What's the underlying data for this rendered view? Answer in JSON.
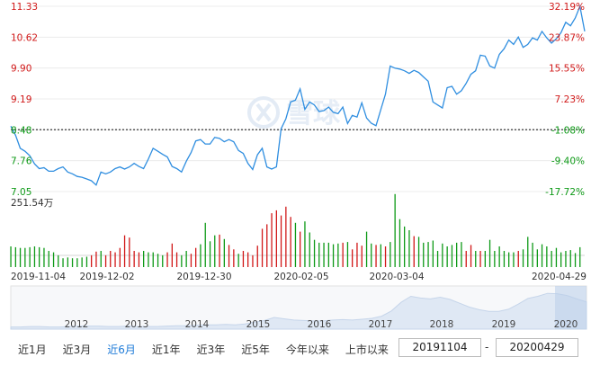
{
  "chart_data": {
    "type": "line",
    "x_labels": [
      "2019-11-04",
      "2019-12-02",
      "2019-12-30",
      "2020-02-05",
      "2020-03-04",
      "2020-04-29"
    ],
    "price_ticks": [
      "11.33",
      "10.62",
      "9.90",
      "9.19",
      "8.48",
      "7.76",
      "7.05"
    ],
    "percent_ticks": [
      "32.19%",
      "23.87%",
      "15.55%",
      "7.23%",
      "-1.08%",
      "-9.40%",
      "-17.72%"
    ],
    "baseline_price": 8.48,
    "ylim": [
      7.05,
      11.33
    ],
    "grid": true,
    "series": [
      {
        "values": [
          8.56,
          8.35,
          8.05,
          7.98,
          7.88,
          7.69,
          7.58,
          7.6,
          7.52,
          7.52,
          7.58,
          7.62,
          7.5,
          7.46,
          7.4,
          7.38,
          7.34,
          7.3,
          7.2,
          7.5,
          7.46,
          7.5,
          7.58,
          7.62,
          7.57,
          7.62,
          7.7,
          7.63,
          7.58,
          7.8,
          8.05,
          7.98,
          7.91,
          7.85,
          7.63,
          7.58,
          7.5,
          7.75,
          7.95,
          8.22,
          8.25,
          8.15,
          8.15,
          8.3,
          8.28,
          8.2,
          8.25,
          8.2,
          8.0,
          7.93,
          7.7,
          7.56,
          7.9,
          8.05,
          7.62,
          7.57,
          7.62,
          8.5,
          8.73,
          9.12,
          9.16,
          9.42,
          8.95,
          9.12,
          9.05,
          8.9,
          8.92,
          9.0,
          8.88,
          8.85,
          9.0,
          8.62,
          8.81,
          8.77,
          9.1,
          8.75,
          8.63,
          8.57,
          8.94,
          9.3,
          9.95,
          9.9,
          9.88,
          9.84,
          9.78,
          9.85,
          9.8,
          9.7,
          9.6,
          9.12,
          9.05,
          8.98,
          9.45,
          9.48,
          9.3,
          9.38,
          9.55,
          9.76,
          9.84,
          10.2,
          10.18,
          9.95,
          9.9,
          10.22,
          10.35,
          10.55,
          10.45,
          10.62,
          10.38,
          10.45,
          10.6,
          10.55,
          10.75,
          10.6,
          10.48,
          10.58,
          10.72,
          10.96,
          10.88,
          11.06,
          11.33,
          10.75
        ]
      }
    ],
    "volume_max_label": "251.54万",
    "volume_colors": [
      "g",
      "g",
      "g",
      "g",
      "g",
      "g",
      "g",
      "g",
      "g",
      "g",
      "g",
      "g",
      "g",
      "g",
      "g",
      "g",
      "g",
      "r",
      "r",
      "g",
      "r",
      "r",
      "r",
      "r",
      "r",
      "r",
      "r",
      "r",
      "g",
      "g",
      "g",
      "g",
      "g",
      "r",
      "r",
      "r",
      "g",
      "g",
      "r",
      "r",
      "g",
      "g",
      "g",
      "g",
      "r",
      "g",
      "r",
      "r",
      "g",
      "r",
      "r",
      "r",
      "r",
      "r",
      "r",
      "r",
      "r",
      "r",
      "r",
      "r",
      "g",
      "r",
      "g",
      "g",
      "g",
      "g",
      "g",
      "g",
      "g",
      "g",
      "r",
      "g",
      "r",
      "r",
      "r",
      "g",
      "g",
      "r",
      "g",
      "r",
      "g",
      "g",
      "g",
      "g",
      "g",
      "r",
      "g",
      "g",
      "g",
      "g",
      "g",
      "g",
      "g",
      "g",
      "g",
      "g",
      "r",
      "r",
      "g",
      "r",
      "g",
      "g",
      "g",
      "g",
      "g",
      "g",
      "g",
      "r",
      "g",
      "g",
      "g",
      "g",
      "g",
      "g",
      "g",
      "g",
      "g",
      "g",
      "g",
      "g",
      "g"
    ],
    "volume_values": [
      0.28,
      0.27,
      0.26,
      0.26,
      0.27,
      0.28,
      0.27,
      0.26,
      0.22,
      0.2,
      0.16,
      0.12,
      0.13,
      0.12,
      0.12,
      0.13,
      0.14,
      0.16,
      0.21,
      0.22,
      0.16,
      0.22,
      0.2,
      0.26,
      0.43,
      0.4,
      0.22,
      0.2,
      0.22,
      0.2,
      0.2,
      0.18,
      0.16,
      0.2,
      0.32,
      0.2,
      0.16,
      0.22,
      0.18,
      0.26,
      0.31,
      0.6,
      0.35,
      0.43,
      0.44,
      0.38,
      0.3,
      0.24,
      0.18,
      0.22,
      0.2,
      0.16,
      0.29,
      0.52,
      0.58,
      0.73,
      0.77,
      0.7,
      0.82,
      0.68,
      0.6,
      0.48,
      0.62,
      0.47,
      0.37,
      0.33,
      0.33,
      0.33,
      0.31,
      0.32,
      0.33,
      0.34,
      0.24,
      0.33,
      0.29,
      0.48,
      0.32,
      0.3,
      0.31,
      0.28,
      0.34,
      0.99,
      0.65,
      0.55,
      0.5,
      0.42,
      0.41,
      0.33,
      0.34,
      0.36,
      0.22,
      0.32,
      0.28,
      0.3,
      0.33,
      0.34,
      0.22,
      0.3,
      0.22,
      0.22,
      0.22,
      0.37,
      0.22,
      0.28,
      0.22,
      0.2,
      0.2,
      0.22,
      0.24,
      0.41,
      0.33,
      0.24,
      0.31,
      0.28,
      0.22,
      0.26,
      0.2,
      0.22,
      0.23,
      0.19,
      0.27
    ]
  },
  "watermark": "雪球",
  "overview": {
    "years": [
      "2012",
      "2013",
      "2014",
      "2015",
      "2016",
      "2017",
      "2018",
      "2019",
      "2020"
    ],
    "values": [
      0.05,
      0.05,
      0.06,
      0.06,
      0.05,
      0.05,
      0.06,
      0.07,
      0.07,
      0.07,
      0.06,
      0.06,
      0.07,
      0.06,
      0.06,
      0.06,
      0.07,
      0.08,
      0.08,
      0.09,
      0.1,
      0.1,
      0.11,
      0.1,
      0.12,
      0.16,
      0.2,
      0.27,
      0.24,
      0.21,
      0.2,
      0.19,
      0.19,
      0.21,
      0.22,
      0.21,
      0.23,
      0.25,
      0.3,
      0.42,
      0.62,
      0.76,
      0.72,
      0.7,
      0.74,
      0.69,
      0.6,
      0.51,
      0.45,
      0.41,
      0.41,
      0.46,
      0.58,
      0.71,
      0.76,
      0.83,
      0.82,
      0.78,
      0.7,
      0.63
    ]
  },
  "controls": {
    "ranges": [
      {
        "label": "近1月",
        "active": false
      },
      {
        "label": "近3月",
        "active": false
      },
      {
        "label": "近6月",
        "active": true
      },
      {
        "label": "近1年",
        "active": false
      },
      {
        "label": "近3年",
        "active": false
      },
      {
        "label": "近5年",
        "active": false
      },
      {
        "label": "今年以来",
        "active": false
      },
      {
        "label": "上市以来",
        "active": false
      }
    ],
    "start_date": "20191104",
    "end_date": "20200429",
    "separator": "-"
  },
  "colors": {
    "line": "#2f8ee0",
    "up": "#d11818",
    "down": "#0e9a17",
    "grid": "#ececec",
    "overview_fill": "#dfe8f4",
    "active_link": "#1e7bd8"
  }
}
